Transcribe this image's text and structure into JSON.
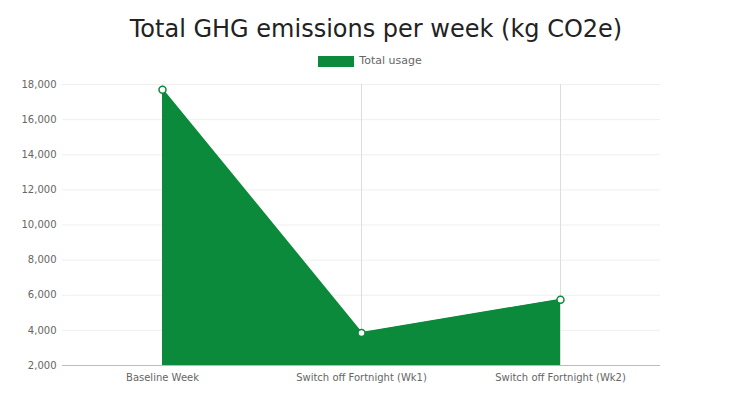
{
  "chart_data": {
    "type": "area",
    "title": "Total GHG emissions per week (kg CO2e)",
    "categories": [
      "Baseline Week",
      "Switch off Fortnight (Wk1)",
      "Switch off Fortnight (Wk2)"
    ],
    "series": [
      {
        "name": "Total usage",
        "color": "#0b8a3b",
        "marker": "circle",
        "values": [
          17700,
          3850,
          5750
        ]
      }
    ],
    "ylim": [
      2000,
      18000
    ],
    "yticks": [
      {
        "value": 2000,
        "label": "2,000"
      },
      {
        "value": 4000,
        "label": "4,000"
      },
      {
        "value": 6000,
        "label": "6,000"
      },
      {
        "value": 8000,
        "label": "8,000"
      },
      {
        "value": 10000,
        "label": "10,000"
      },
      {
        "value": 12000,
        "label": "12,000"
      },
      {
        "value": 14000,
        "label": "14,000"
      },
      {
        "value": 16000,
        "label": "16,000"
      },
      {
        "value": 18000,
        "label": "18,000"
      }
    ],
    "grid": true,
    "legend": "top"
  }
}
